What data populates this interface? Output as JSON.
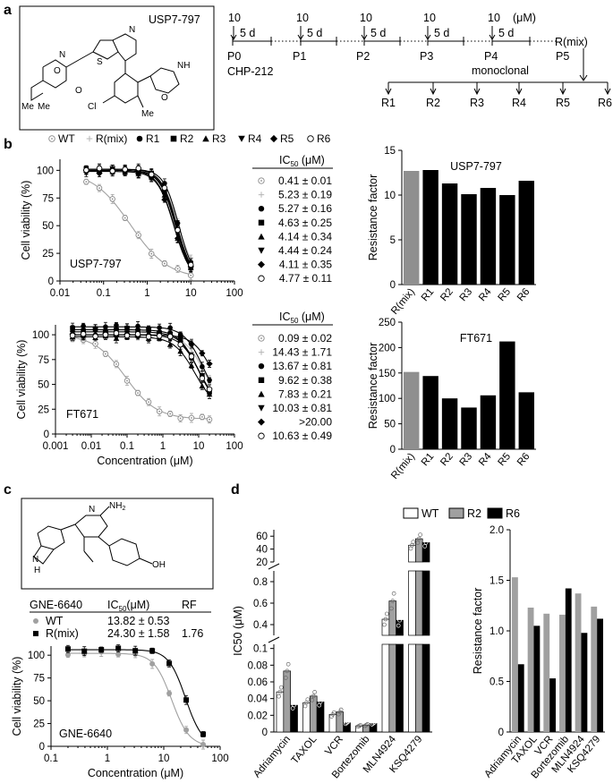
{
  "panels": {
    "a": "a",
    "b": "b",
    "c": "c",
    "d": "d"
  },
  "panel_a": {
    "compound_label": "USP7-797",
    "doses": [
      "10",
      "10",
      "10",
      "10",
      "10"
    ],
    "dose_unit": "(μM)",
    "interval": "5 d",
    "passages": [
      "P0",
      "P1",
      "P2",
      "P3",
      "P4",
      "P5"
    ],
    "cell_line": "CHP-212",
    "pooled": "R(mix)",
    "monoclonal": "monoclonal",
    "clones": [
      "R1",
      "R2",
      "R3",
      "R4",
      "R5",
      "R6"
    ],
    "structure_atoms": [
      {
        "id": "N",
        "t": "N"
      },
      {
        "id": "O",
        "t": "O"
      },
      {
        "id": "S",
        "t": "S"
      },
      {
        "id": "Cl",
        "t": "Cl"
      },
      {
        "id": "Me",
        "t": "Me"
      },
      {
        "id": "Me2",
        "t": "Me"
      },
      {
        "id": "Me3",
        "t": "Me"
      },
      {
        "id": "O2",
        "t": "O"
      },
      {
        "id": "N2",
        "t": "N"
      },
      {
        "id": "O3",
        "t": "O"
      },
      {
        "id": "NH",
        "t": "NH"
      }
    ]
  },
  "panel_b": {
    "legend": [
      {
        "label": "WT",
        "marker": "dotcircle"
      },
      {
        "label": "R(mix)",
        "marker": "plus"
      },
      {
        "label": "R1",
        "marker": "circle"
      },
      {
        "label": "R2",
        "marker": "square"
      },
      {
        "label": "R3",
        "marker": "triangle-up"
      },
      {
        "label": "R4",
        "marker": "triangle-down"
      },
      {
        "label": "R5",
        "marker": "diamond"
      },
      {
        "label": "R6",
        "marker": "open-circle"
      }
    ],
    "ic50_header": "IC",
    "ic50_sub": "50",
    "ic50_unit": " (μM)"
  },
  "panel_c": {
    "table": {
      "headers": [
        "GNE-6640",
        "IC",
        "50",
        "(μM)",
        "RF"
      ],
      "rows": [
        {
          "label": "WT",
          "ic50": "13.82 ± 0.53",
          "rf": ""
        },
        {
          "label": "R(mix)",
          "ic50": "24.30 ± 1.58",
          "rf": "1.76"
        }
      ]
    },
    "structure_atoms": [
      {
        "id": "NH2",
        "t": "NH"
      },
      {
        "id": "NH2s",
        "t": "2"
      },
      {
        "id": "N",
        "t": "N"
      },
      {
        "id": "NH",
        "t": "N"
      },
      {
        "id": "H",
        "t": "H"
      },
      {
        "id": "OH",
        "t": "OH"
      }
    ]
  },
  "panel_d_legend": [
    {
      "label": "WT",
      "color": "#ffffff"
    },
    {
      "label": "R2",
      "color": "#a0a0a0"
    },
    {
      "label": "R6",
      "color": "#000000"
    }
  ],
  "chart_data": [
    {
      "id": "b1",
      "type": "scatter",
      "scale": "log-x",
      "xlabel": "",
      "ylabel": "Cell viability (%)",
      "xlim": [
        0.01,
        100
      ],
      "ylim": [
        0,
        110
      ],
      "xticks": [
        "0.01",
        "0.1",
        "1",
        "10",
        "100"
      ],
      "yticks": [
        "0",
        "25",
        "50",
        "75",
        "100"
      ],
      "annotation": "USP7-797",
      "x": [
        0.04,
        0.08,
        0.16,
        0.31,
        0.63,
        1.25,
        2.5,
        5,
        10
      ],
      "series": [
        {
          "name": "WT",
          "ic50_text": "0.41 ± 0.01",
          "ic50": 0.41,
          "hill": 1.0,
          "top": 100,
          "bottom": 2
        },
        {
          "name": "R(mix)",
          "ic50_text": "5.23 ± 0.19",
          "ic50": 5.23,
          "hill": 2.2,
          "top": 100,
          "bottom": 0
        },
        {
          "name": "R1",
          "ic50_text": "5.27 ± 0.16",
          "ic50": 5.27,
          "hill": 2.5,
          "top": 101,
          "bottom": 0
        },
        {
          "name": "R2",
          "ic50_text": "4.63 ± 0.25",
          "ic50": 4.63,
          "hill": 2.4,
          "top": 100,
          "bottom": 0
        },
        {
          "name": "R3",
          "ic50_text": "4.14 ± 0.34",
          "ic50": 4.14,
          "hill": 2.3,
          "top": 100,
          "bottom": 0
        },
        {
          "name": "R4",
          "ic50_text": "4.44 ± 0.24",
          "ic50": 4.44,
          "hill": 2.4,
          "top": 100,
          "bottom": 0
        },
        {
          "name": "R5",
          "ic50_text": "4.11 ± 0.35",
          "ic50": 4.11,
          "hill": 2.3,
          "top": 99,
          "bottom": 0
        },
        {
          "name": "R6",
          "ic50_text": "4.77 ± 0.11",
          "ic50": 4.77,
          "hill": 2.4,
          "top": 101,
          "bottom": 0
        }
      ]
    },
    {
      "id": "b2",
      "type": "scatter",
      "scale": "log-x",
      "xlabel": "Concentration (μM)",
      "ylabel": "Cell viability (%)",
      "xlim": [
        0.001,
        100
      ],
      "ylim": [
        0,
        110
      ],
      "xticks": [
        "0.001",
        "0.01",
        "0.1",
        "1",
        "10",
        "100"
      ],
      "yticks": [
        "0",
        "25",
        "50",
        "75",
        "100"
      ],
      "annotation": "FT671",
      "x": [
        0.003,
        0.006,
        0.013,
        0.025,
        0.05,
        0.1,
        0.2,
        0.4,
        0.8,
        1.6,
        3.1,
        6.3,
        12.5,
        20
      ],
      "series": [
        {
          "name": "WT",
          "ic50_text": "0.09 ± 0.02",
          "ic50": 0.09,
          "hill": 1.0,
          "top": 100,
          "bottom": 15
        },
        {
          "name": "R(mix)",
          "ic50_text": "14.43 ± 1.71",
          "ic50": 14.43,
          "hill": 1.6,
          "top": 100,
          "bottom": 25
        },
        {
          "name": "R1",
          "ic50_text": "13.67 ± 0.81",
          "ic50": 13.67,
          "hill": 1.6,
          "top": 108,
          "bottom": 25
        },
        {
          "name": "R2",
          "ic50_text": "9.62 ± 0.38",
          "ic50": 9.62,
          "hill": 1.6,
          "top": 105,
          "bottom": 25
        },
        {
          "name": "R3",
          "ic50_text": "7.83 ± 0.21",
          "ic50": 7.83,
          "hill": 1.5,
          "top": 98,
          "bottom": 25
        },
        {
          "name": "R4",
          "ic50_text": "10.03 ± 0.81",
          "ic50": 10.03,
          "hill": 1.6,
          "top": 103,
          "bottom": 25
        },
        {
          "name": "R5",
          "ic50_text": ">20.00",
          "ic50": 25,
          "hill": 1.6,
          "top": 100,
          "bottom": 25
        },
        {
          "name": "R6",
          "ic50_text": "10.63 ± 0.49",
          "ic50": 10.63,
          "hill": 1.6,
          "top": 100,
          "bottom": 25
        }
      ]
    },
    {
      "id": "b3",
      "type": "bar",
      "title": "USP7-797",
      "xlabel": "",
      "ylabel": "Resistance factor",
      "categories": [
        "R(mix)",
        "R1",
        "R2",
        "R3",
        "R4",
        "R5",
        "R6"
      ],
      "values": [
        12.7,
        12.8,
        11.3,
        10.1,
        10.8,
        10.0,
        11.6
      ],
      "colors": [
        "#8f8f8f",
        "#000000",
        "#000000",
        "#000000",
        "#000000",
        "#000000",
        "#000000"
      ],
      "ylim": [
        0,
        15
      ],
      "yticks": [
        "0",
        "5",
        "10",
        "15"
      ]
    },
    {
      "id": "b4",
      "type": "bar",
      "title": "FT671",
      "xlabel": "",
      "ylabel": "Resistance factor",
      "categories": [
        "R(mix)",
        "R1",
        "R2",
        "R3",
        "R4",
        "R5",
        "R6"
      ],
      "values": [
        152,
        144,
        100,
        82,
        106,
        212,
        112
      ],
      "colors": [
        "#8f8f8f",
        "#000000",
        "#000000",
        "#000000",
        "#000000",
        "#000000",
        "#000000"
      ],
      "ylim": [
        0,
        250
      ],
      "yticks": [
        "0",
        "50",
        "100",
        "150",
        "200",
        "250"
      ]
    },
    {
      "id": "c1",
      "type": "scatter",
      "scale": "log-x",
      "xlabel": "Concentration (μM)",
      "ylabel": "Cell viability (%)",
      "xlim": [
        0.1,
        100
      ],
      "ylim": [
        0,
        110
      ],
      "xticks": [
        "0.1",
        "1",
        "10",
        "100"
      ],
      "yticks": [
        "0",
        "25",
        "50",
        "75",
        "100"
      ],
      "annotation": "GNE-6640",
      "x": [
        0.2,
        0.39,
        0.78,
        1.56,
        3.13,
        6.25,
        12.5,
        25,
        50
      ],
      "series": [
        {
          "name": "WT",
          "ic50": 13.82,
          "hill": 2.8,
          "top": 102,
          "bottom": 0
        },
        {
          "name": "R(mix)",
          "ic50": 24.3,
          "hill": 2.9,
          "top": 106,
          "bottom": 0
        }
      ]
    },
    {
      "id": "d1",
      "type": "bar",
      "xlabel": "",
      "ylabel": "IC50 (μM)",
      "categories": [
        "Adriamycin",
        "TAXOL",
        "VCR",
        "Bortezomib",
        "MLN4924",
        "KSQ4279"
      ],
      "series": [
        {
          "name": "WT",
          "values": [
            0.048,
            0.035,
            0.021,
            0.0073,
            0.45,
            46
          ]
        },
        {
          "name": "R2",
          "values": [
            0.073,
            0.043,
            0.024,
            0.0083,
            0.62,
            56
          ]
        },
        {
          "name": "R6",
          "values": [
            0.032,
            0.036,
            0.011,
            0.0103,
            0.44,
            50
          ]
        }
      ],
      "yticks_top": [
        "20",
        "40",
        "60"
      ],
      "yticks_mid": [
        "0.4",
        "0.6",
        "0.8"
      ],
      "yticks_bot": [
        "0",
        "0.02",
        "0.04",
        "0.06",
        "0.08",
        "0.1"
      ]
    },
    {
      "id": "d2",
      "type": "bar",
      "xlabel": "",
      "ylabel": "Resistance factor",
      "categories": [
        "Adriamycin",
        "TAXOL",
        "VCR",
        "Bortezomib",
        "MLN4924",
        "KSQ4279"
      ],
      "series": [
        {
          "name": "R2",
          "values": [
            1.53,
            1.23,
            1.17,
            1.16,
            1.37,
            1.24
          ]
        },
        {
          "name": "R6",
          "values": [
            0.67,
            1.05,
            0.53,
            1.42,
            0.98,
            1.12
          ]
        }
      ],
      "ylim": [
        0,
        2.0
      ],
      "yticks": [
        "0",
        "0.5",
        "1.0",
        "1.5",
        "2.0"
      ]
    }
  ]
}
